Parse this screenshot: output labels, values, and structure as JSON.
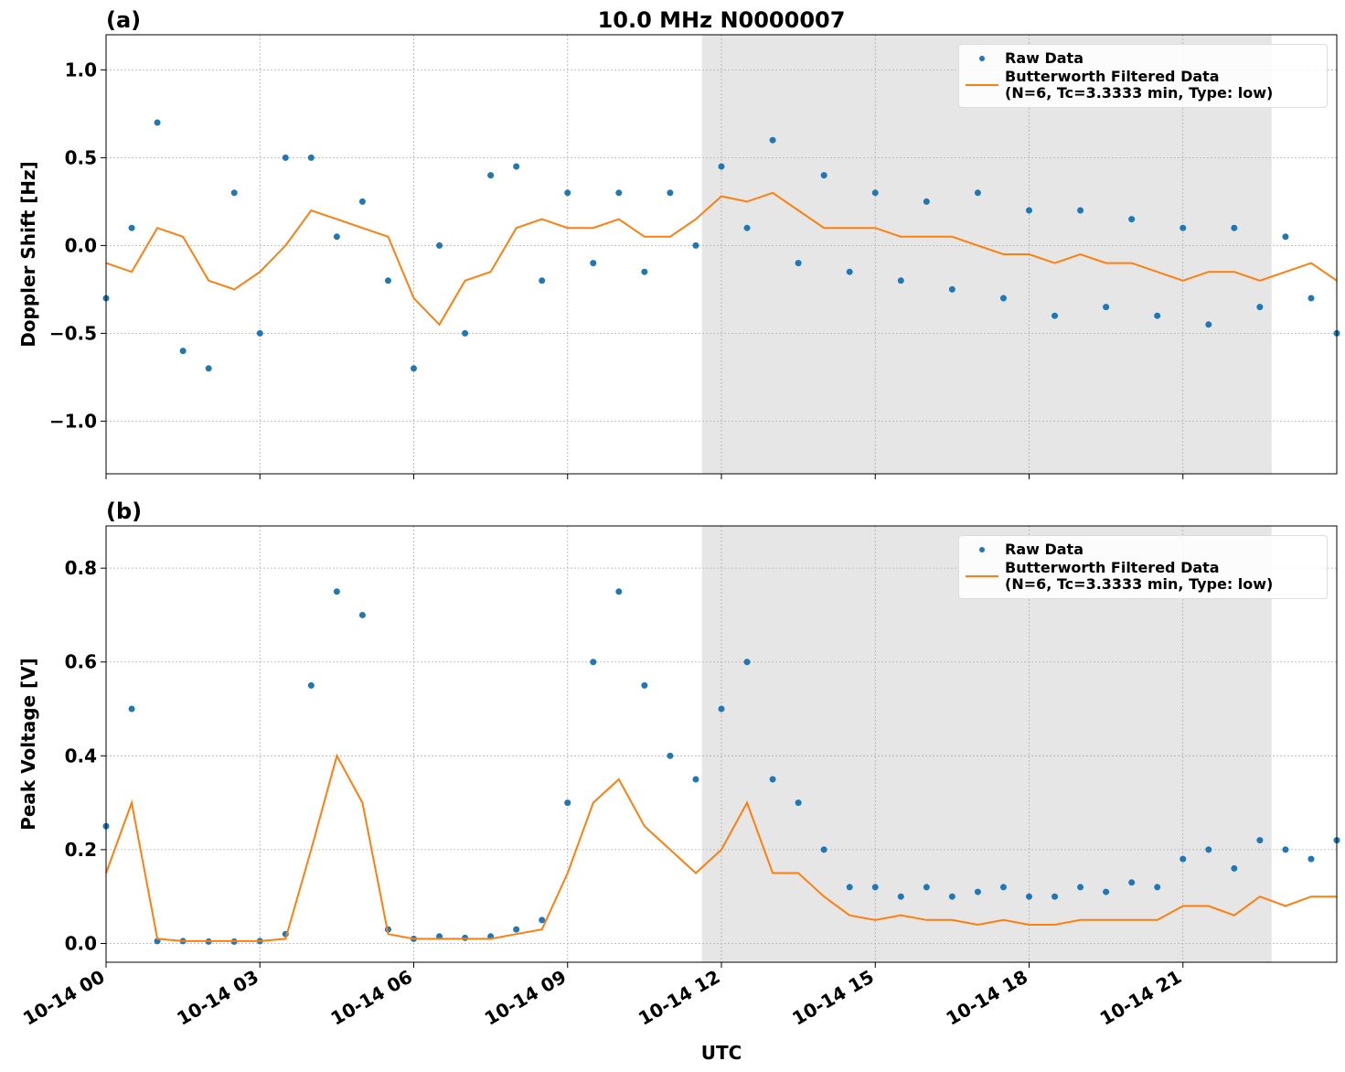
{
  "chart_data": [
    {
      "type": "line",
      "panel_label": "(a)",
      "title": "10.0 MHz N0000007",
      "ylabel": "Doppler Shift [Hz]",
      "xlim": [
        0,
        24
      ],
      "ylim": [
        -1.3,
        1.2
      ],
      "grid": true,
      "span": [
        11.62,
        22.73
      ],
      "span_color": "#e6e6e6",
      "yticks": [
        {
          "value": -1.0,
          "label": "−1.0"
        },
        {
          "value": -0.5,
          "label": "−0.5"
        },
        {
          "value": 0.0,
          "label": "0.0"
        },
        {
          "value": 0.5,
          "label": "0.5"
        },
        {
          "value": 1.0,
          "label": "1.0"
        }
      ],
      "x": [
        0,
        0.5,
        1,
        1.5,
        2,
        2.5,
        3,
        3.5,
        4,
        4.5,
        5,
        5.5,
        6,
        6.5,
        7,
        7.5,
        8,
        8.5,
        9,
        9.5,
        10,
        10.5,
        11,
        11.5,
        12,
        12.5,
        13,
        13.5,
        14,
        14.5,
        15,
        15.5,
        16,
        16.5,
        17,
        17.5,
        18,
        18.5,
        19,
        19.5,
        20,
        20.5,
        21,
        21.5,
        22,
        22.5,
        23,
        23.5,
        24
      ],
      "series": [
        {
          "name": "Raw Data",
          "kind": "scatter",
          "color": "#1f77b4",
          "values": [
            -0.3,
            0.1,
            0.7,
            -0.6,
            -0.7,
            0.3,
            -0.5,
            0.5,
            0.5,
            0.05,
            0.25,
            -0.2,
            -0.7,
            0.0,
            -0.5,
            0.4,
            0.45,
            -0.2,
            0.3,
            -0.1,
            0.3,
            -0.15,
            0.3,
            0.0,
            0.45,
            0.1,
            0.6,
            -0.1,
            0.4,
            -0.15,
            0.3,
            -0.2,
            0.25,
            -0.25,
            0.3,
            -0.3,
            0.2,
            -0.4,
            0.2,
            -0.35,
            0.15,
            -0.4,
            0.1,
            -0.45,
            0.1,
            -0.35,
            0.05,
            -0.3,
            -0.5
          ]
        },
        {
          "name": "Butterworth Filtered Data\n(N=6, Tc=3.3333 min, Type: low)",
          "kind": "line",
          "color": "#ff7f0e",
          "values": [
            -0.1,
            -0.15,
            0.1,
            0.05,
            -0.2,
            -0.25,
            -0.15,
            0.0,
            0.2,
            0.15,
            0.1,
            0.05,
            -0.3,
            -0.45,
            -0.2,
            -0.15,
            0.1,
            0.15,
            0.1,
            0.1,
            0.15,
            0.05,
            0.05,
            0.15,
            0.28,
            0.25,
            0.3,
            0.2,
            0.1,
            0.1,
            0.1,
            0.05,
            0.05,
            0.05,
            0.0,
            -0.05,
            -0.05,
            -0.1,
            -0.05,
            -0.1,
            -0.1,
            -0.15,
            -0.2,
            -0.15,
            -0.15,
            -0.2,
            -0.15,
            -0.1,
            -0.2
          ]
        }
      ]
    },
    {
      "type": "line",
      "panel_label": "(b)",
      "ylabel": "Peak Voltage [V]",
      "xlabel": "UTC",
      "xlim": [
        0,
        24
      ],
      "ylim": [
        -0.04,
        0.89
      ],
      "grid": true,
      "span": [
        11.62,
        22.73
      ],
      "span_color": "#e6e6e6",
      "yticks": [
        {
          "value": 0.0,
          "label": "0.0"
        },
        {
          "value": 0.2,
          "label": "0.2"
        },
        {
          "value": 0.4,
          "label": "0.4"
        },
        {
          "value": 0.6,
          "label": "0.6"
        },
        {
          "value": 0.8,
          "label": "0.8"
        }
      ],
      "xticks": [
        {
          "value": 0,
          "label": "10-14 00"
        },
        {
          "value": 3,
          "label": "10-14 03"
        },
        {
          "value": 6,
          "label": "10-14 06"
        },
        {
          "value": 9,
          "label": "10-14 09"
        },
        {
          "value": 12,
          "label": "10-14 12"
        },
        {
          "value": 15,
          "label": "10-14 15"
        },
        {
          "value": 18,
          "label": "10-14 18"
        },
        {
          "value": 21,
          "label": "10-14 21"
        }
      ],
      "x": [
        0,
        0.5,
        1,
        1.5,
        2,
        2.5,
        3,
        3.5,
        4,
        4.5,
        5,
        5.5,
        6,
        6.5,
        7,
        7.5,
        8,
        8.5,
        9,
        9.5,
        10,
        10.5,
        11,
        11.5,
        12,
        12.5,
        13,
        13.5,
        14,
        14.5,
        15,
        15.5,
        16,
        16.5,
        17,
        17.5,
        18,
        18.5,
        19,
        19.5,
        20,
        20.5,
        21,
        21.5,
        22,
        22.5,
        23,
        23.5,
        24
      ],
      "series": [
        {
          "name": "Raw Data",
          "kind": "scatter",
          "color": "#1f77b4",
          "values": [
            0.25,
            0.5,
            0.005,
            0.005,
            0.004,
            0.004,
            0.005,
            0.02,
            0.55,
            0.75,
            0.7,
            0.03,
            0.01,
            0.015,
            0.012,
            0.015,
            0.03,
            0.05,
            0.3,
            0.6,
            0.75,
            0.55,
            0.4,
            0.35,
            0.5,
            0.6,
            0.35,
            0.3,
            0.2,
            0.12,
            0.12,
            0.1,
            0.12,
            0.1,
            0.11,
            0.12,
            0.1,
            0.1,
            0.12,
            0.11,
            0.13,
            0.12,
            0.18,
            0.2,
            0.16,
            0.22,
            0.2,
            0.18,
            0.22
          ]
        },
        {
          "name": "Butterworth Filtered Data\n(N=6, Tc=3.3333 min, Type: low)",
          "kind": "line",
          "color": "#ff7f0e",
          "values": [
            0.15,
            0.3,
            0.01,
            0.005,
            0.005,
            0.005,
            0.005,
            0.01,
            0.2,
            0.4,
            0.3,
            0.02,
            0.01,
            0.01,
            0.01,
            0.01,
            0.02,
            0.03,
            0.15,
            0.3,
            0.35,
            0.25,
            0.2,
            0.15,
            0.2,
            0.3,
            0.15,
            0.15,
            0.1,
            0.06,
            0.05,
            0.06,
            0.05,
            0.05,
            0.04,
            0.05,
            0.04,
            0.04,
            0.05,
            0.05,
            0.05,
            0.05,
            0.08,
            0.08,
            0.06,
            0.1,
            0.08,
            0.1,
            0.1
          ]
        }
      ]
    }
  ]
}
